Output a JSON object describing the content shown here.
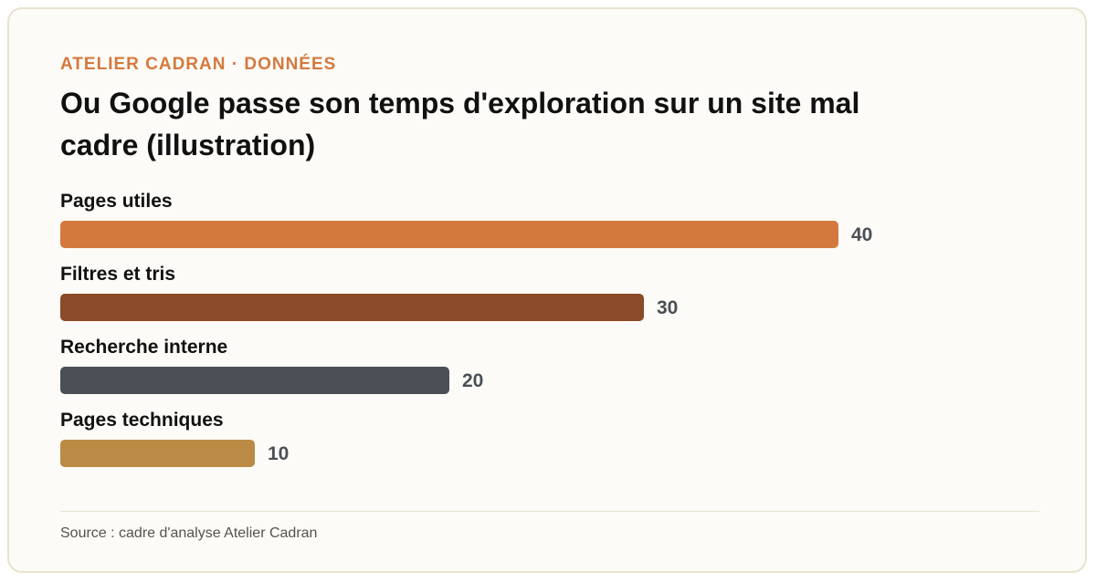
{
  "header": {
    "kicker": "ATELIER CADRAN · DONNÉES",
    "title": "Ou Google passe son temps d'exploration sur un site mal cadre (illustration)"
  },
  "footer": {
    "source": "Source : cadre d'analyse Atelier Cadran"
  },
  "chart_data": {
    "type": "bar",
    "orientation": "horizontal",
    "title": "Ou Google passe son temps d'exploration sur un site mal cadre (illustration)",
    "categories": [
      "Pages utiles",
      "Filtres et tris",
      "Recherche interne",
      "Pages techniques"
    ],
    "values": [
      40,
      30,
      20,
      10
    ],
    "colors": [
      "#d4793e",
      "#8b4a28",
      "#4b5057",
      "#bb8a44"
    ],
    "xlim": [
      0,
      40
    ],
    "grid": false,
    "data_labels": true
  }
}
